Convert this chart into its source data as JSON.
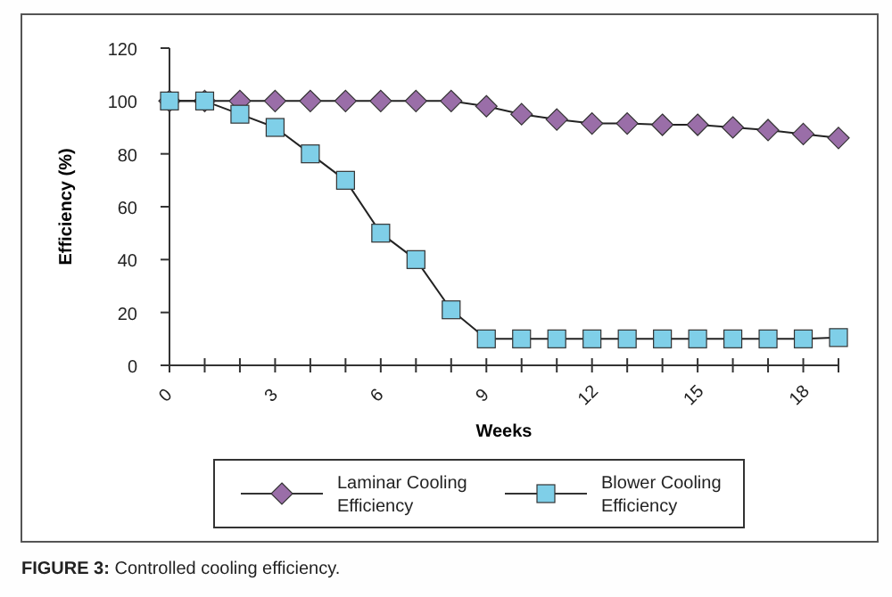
{
  "chart_data": {
    "type": "line",
    "xlabel": "Weeks",
    "ylabel": "Efficiency (%)",
    "annotations": [
      "FIGURE 3: Controlled cooling efficiency."
    ],
    "x": [
      0,
      1,
      2,
      3,
      4,
      5,
      6,
      7,
      8,
      9,
      10,
      11,
      12,
      13,
      14,
      15,
      16,
      17,
      18,
      19
    ],
    "series": [
      {
        "name": "Laminar Cooling Efficiency",
        "color": "#9a6ea8",
        "marker": "diamond",
        "values": [
          100,
          100,
          100,
          100,
          100,
          100,
          100,
          100,
          100,
          98,
          95,
          93,
          91.5,
          91.5,
          91,
          91,
          90,
          89,
          87.5,
          86
        ]
      },
      {
        "name": "Blower Cooling Efficiency",
        "color": "#7fcfe8",
        "marker": "square",
        "values": [
          100,
          100,
          95,
          90,
          80,
          70,
          50,
          40,
          21,
          10,
          10,
          10,
          10,
          10,
          10,
          10,
          10,
          10,
          10,
          10.5
        ]
      }
    ],
    "xlim": [
      0,
      19
    ],
    "xticks": [
      0,
      {
        "value": 1,
        "label": null
      },
      {
        "value": 2,
        "label": null
      },
      3,
      {
        "value": 4,
        "label": null
      },
      {
        "value": 5,
        "label": null
      },
      6,
      {
        "value": 7,
        "label": null
      },
      {
        "value": 8,
        "label": null
      },
      9,
      {
        "value": 10,
        "label": null
      },
      {
        "value": 11,
        "label": null
      },
      12,
      {
        "value": 13,
        "label": null
      },
      {
        "value": 14,
        "label": null
      },
      15,
      {
        "value": 16,
        "label": null
      },
      {
        "value": 17,
        "label": null
      },
      18,
      {
        "value": 19,
        "label": null
      }
    ],
    "ylim": [
      0,
      120
    ],
    "yticks": [
      0,
      20,
      40,
      60,
      80,
      100,
      120
    ],
    "grid": false,
    "legend": "bottom",
    "line_style": "solid"
  }
}
